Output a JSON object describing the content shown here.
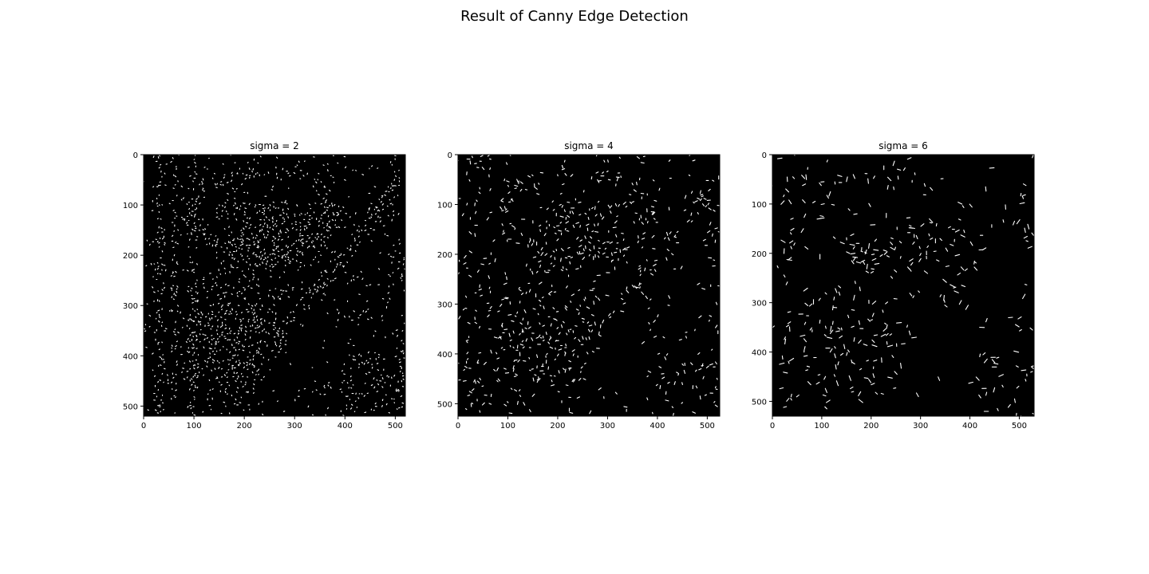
{
  "figure": {
    "title": "Result of Canny Edge Detection"
  },
  "chart_data": [
    {
      "type": "heatmap",
      "title": "sigma = 2",
      "colormap": "gray",
      "background": "#000000",
      "edge_color": "#ffffff",
      "image_width": 520,
      "image_height": 520,
      "xlim": [
        0,
        520
      ],
      "ylim": [
        520,
        0
      ],
      "xticks": [
        0,
        100,
        200,
        300,
        400,
        500
      ],
      "yticks": [
        0,
        100,
        200,
        300,
        400,
        500
      ],
      "xtick_labels": [
        "0",
        "100",
        "200",
        "300",
        "400",
        "500"
      ],
      "ytick_labels": [
        "0",
        "100",
        "200",
        "300",
        "400",
        "500"
      ],
      "edge_density": 0.9
    },
    {
      "type": "heatmap",
      "title": "sigma = 4",
      "colormap": "gray",
      "background": "#000000",
      "edge_color": "#ffffff",
      "image_width": 525,
      "image_height": 525,
      "xlim": [
        0,
        525
      ],
      "ylim": [
        525,
        0
      ],
      "xticks": [
        0,
        100,
        200,
        300,
        400,
        500
      ],
      "yticks": [
        0,
        100,
        200,
        300,
        400,
        500
      ],
      "xtick_labels": [
        "0",
        "100",
        "200",
        "300",
        "400",
        "500"
      ],
      "ytick_labels": [
        "0",
        "100",
        "200",
        "300",
        "400",
        "500"
      ],
      "edge_density": 0.6
    },
    {
      "type": "heatmap",
      "title": "sigma = 6",
      "colormap": "gray",
      "background": "#000000",
      "edge_color": "#ffffff",
      "image_width": 530,
      "image_height": 530,
      "xlim": [
        0,
        530
      ],
      "ylim": [
        530,
        0
      ],
      "xticks": [
        0,
        100,
        200,
        300,
        400,
        500
      ],
      "yticks": [
        0,
        100,
        200,
        300,
        400,
        500
      ],
      "xtick_labels": [
        "0",
        "100",
        "200",
        "300",
        "400",
        "500"
      ],
      "ytick_labels": [
        "0",
        "100",
        "200",
        "300",
        "400",
        "500"
      ],
      "edge_density": 0.45
    }
  ]
}
